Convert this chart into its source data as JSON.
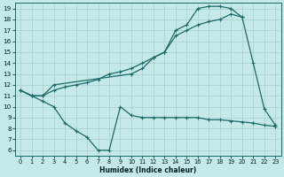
{
  "xlabel": "Humidex (Indice chaleur)",
  "bg_color": "#c5e8e8",
  "grid_color": "#a8d0d0",
  "line_color": "#1a6b6b",
  "xlim": [
    -0.5,
    23.5
  ],
  "ylim": [
    5.5,
    19.5
  ],
  "yticks": [
    6,
    7,
    8,
    9,
    10,
    11,
    12,
    13,
    14,
    15,
    16,
    17,
    18,
    19
  ],
  "xticks": [
    0,
    1,
    2,
    3,
    4,
    5,
    6,
    7,
    8,
    9,
    10,
    11,
    12,
    13,
    14,
    15,
    16,
    17,
    18,
    19,
    20,
    21,
    22,
    23
  ],
  "line1_x": [
    0,
    1,
    2,
    3,
    4,
    5,
    6,
    7,
    8,
    9,
    10,
    11,
    12,
    13,
    14,
    15,
    16,
    17,
    18,
    19,
    20,
    21,
    22,
    23
  ],
  "line1_y": [
    11.5,
    11.0,
    10.5,
    10.0,
    8.5,
    7.8,
    7.2,
    6.0,
    6.0,
    10.0,
    9.2,
    9.0,
    9.0,
    9.0,
    9.0,
    9.0,
    9.0,
    8.8,
    8.8,
    8.7,
    8.6,
    8.5,
    8.3,
    8.2
  ],
  "line2_x": [
    0,
    1,
    2,
    3,
    4,
    5,
    6,
    7,
    8,
    9,
    10,
    11,
    12,
    13,
    14,
    15,
    16,
    17,
    18,
    19,
    20,
    21,
    22,
    23
  ],
  "line2_y": [
    11.5,
    11.0,
    11.0,
    11.5,
    11.8,
    12.0,
    12.2,
    12.5,
    13.0,
    13.2,
    13.5,
    14.0,
    14.5,
    15.0,
    16.5,
    17.0,
    17.5,
    17.8,
    18.0,
    18.5,
    18.2,
    14.0,
    9.8,
    8.3
  ],
  "line3_x": [
    0,
    1,
    2,
    3,
    10,
    11,
    12,
    13,
    14,
    15,
    16,
    17,
    18,
    19,
    20
  ],
  "line3_y": [
    11.5,
    11.0,
    11.0,
    12.0,
    13.0,
    13.5,
    14.5,
    15.0,
    17.0,
    17.5,
    19.0,
    19.2,
    19.2,
    19.0,
    18.2
  ]
}
